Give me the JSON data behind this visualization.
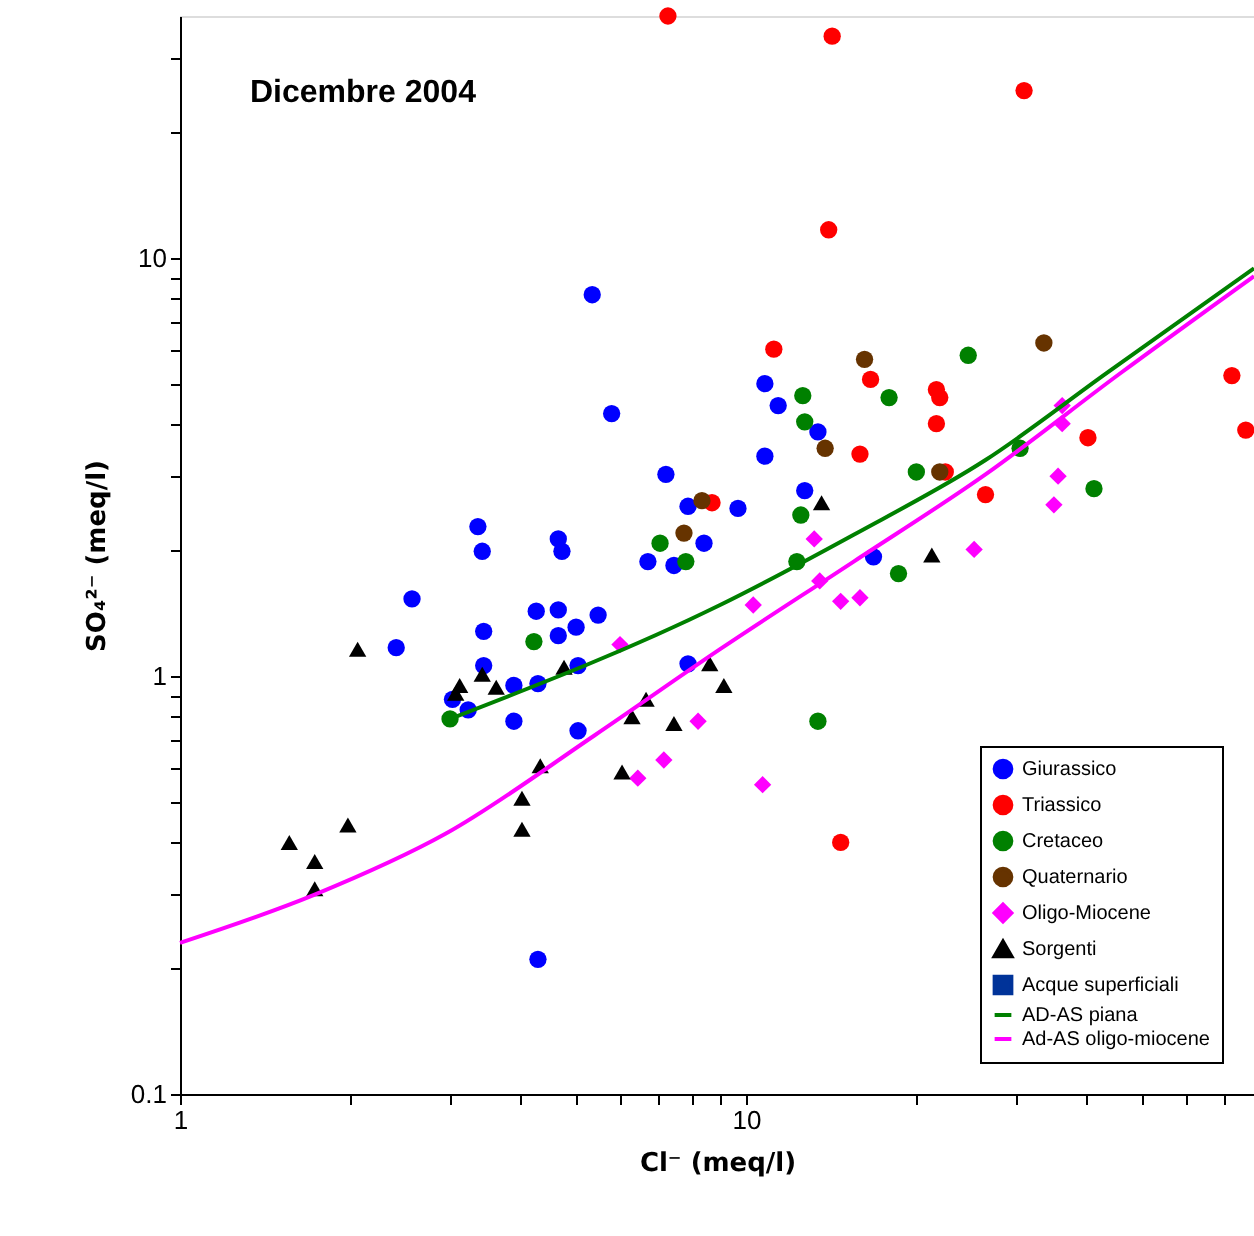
{
  "chart_data": {
    "type": "scatter",
    "title": "Dicembre 2004",
    "xlabel": "Cl⁻ (meq/l)",
    "ylabel": "SO₄²⁻ (meq/l)",
    "log": "xy",
    "grid": false,
    "legend": "bottom right",
    "xlim": [
      1,
      79
    ],
    "xticks": [
      1,
      {
        "value": 2,
        "label": null
      },
      {
        "value": 3,
        "label": null
      },
      {
        "value": 4,
        "label": null
      },
      {
        "value": 5,
        "label": null
      },
      {
        "value": 6,
        "label": null
      },
      {
        "value": 7,
        "label": null
      },
      {
        "value": 8,
        "label": null
      },
      {
        "value": 9,
        "label": null
      },
      10,
      {
        "value": 20,
        "label": null
      },
      {
        "value": 30,
        "label": null
      },
      {
        "value": 40,
        "label": null
      },
      {
        "value": 50,
        "label": null
      },
      {
        "value": 60,
        "label": null
      },
      {
        "value": 70,
        "label": null
      }
    ],
    "ylim": [
      0.1,
      38
    ],
    "yticks": [
      0.1,
      {
        "value": 0.2,
        "label": null
      },
      {
        "value": 0.3,
        "label": null
      },
      {
        "value": 0.4,
        "label": null
      },
      {
        "value": 0.5,
        "label": null
      },
      {
        "value": 0.6,
        "label": null
      },
      {
        "value": 0.7,
        "label": null
      },
      {
        "value": 0.8,
        "label": null
      },
      {
        "value": 0.9,
        "label": null
      },
      1,
      {
        "value": 2,
        "label": null
      },
      {
        "value": 3,
        "label": null
      },
      {
        "value": 4,
        "label": null
      },
      {
        "value": 5,
        "label": null
      },
      {
        "value": 6,
        "label": null
      },
      {
        "value": 7,
        "label": null
      },
      {
        "value": 8,
        "label": null
      },
      {
        "value": 9,
        "label": null
      },
      10,
      {
        "value": 20,
        "label": null
      },
      {
        "value": 30,
        "label": null
      }
    ],
    "series": [
      {
        "name": "Giurassico",
        "marker": "circle",
        "color": "#0000ff",
        "x": [
          5.79,
          7.22,
          7.9,
          8.43,
          6.71,
          7.46,
          3.36,
          3.42,
          4.66,
          4.73,
          2.57,
          2.41,
          3.44,
          4.26,
          4.66,
          5.48,
          4.66,
          5.01,
          3.44,
          5.05,
          3.89,
          4.29,
          3.23,
          3.03,
          3.89,
          5.05,
          7.9,
          5.35,
          10.8,
          11.4,
          13.4,
          10.8,
          12.7,
          9.68,
          16.8,
          4.29
        ],
        "values": [
          4.25,
          3.04,
          2.55,
          2.08,
          1.88,
          1.84,
          2.28,
          1.99,
          2.13,
          1.99,
          1.53,
          1.17,
          1.28,
          1.43,
          1.44,
          1.4,
          1.25,
          1.31,
          1.06,
          1.06,
          0.95,
          0.96,
          0.83,
          0.88,
          0.78,
          0.74,
          1.07,
          8.18,
          5.01,
          4.44,
          3.84,
          3.36,
          2.78,
          2.52,
          1.93,
          0.21
        ]
      },
      {
        "name": "Triassico",
        "marker": "circle",
        "color": "#ff0000",
        "x": [
          7.28,
          14.2,
          31.0,
          14.0,
          11.2,
          72.2,
          16.6,
          21.7,
          22.0,
          21.7,
          15.9,
          40.2,
          76.4,
          26.5,
          22.5,
          14.7,
          8.71
        ],
        "values": [
          38.0,
          34.0,
          25.2,
          11.7,
          6.06,
          5.24,
          5.13,
          4.85,
          4.64,
          4.02,
          3.4,
          3.72,
          3.88,
          2.72,
          3.08,
          0.4,
          2.6
        ]
      },
      {
        "name": "Cretaceo",
        "marker": "circle",
        "color": "#008000",
        "x": [
          24.7,
          7.05,
          7.83,
          4.22,
          3.0,
          12.6,
          17.9,
          12.7,
          20.0,
          30.5,
          41.2,
          12.5,
          12.3,
          18.6,
          13.4
        ],
        "values": [
          5.86,
          2.08,
          1.88,
          1.21,
          0.79,
          4.69,
          4.64,
          4.06,
          3.08,
          3.51,
          2.81,
          2.43,
          1.88,
          1.76,
          0.78
        ]
      },
      {
        "name": "Quaternario",
        "marker": "circle",
        "color": "#663300",
        "x": [
          16.2,
          33.6,
          8.36,
          7.77,
          13.8,
          22.0
        ],
        "values": [
          5.73,
          6.27,
          2.63,
          2.2,
          3.51,
          3.08
        ]
      },
      {
        "name": "Oligo-Miocene",
        "marker": "diamond",
        "color": "#ff00ff",
        "x": [
          5.99,
          8.23,
          36.2,
          36.2,
          35.6,
          35.0,
          25.3,
          13.2,
          13.5,
          14.7,
          15.9,
          10.3,
          6.44,
          7.16,
          10.7
        ],
        "values": [
          1.19,
          0.78,
          4.44,
          4.02,
          3.01,
          2.57,
          2.01,
          2.13,
          1.69,
          1.51,
          1.54,
          1.48,
          0.57,
          0.63,
          0.55
        ]
      },
      {
        "name": "Sorgenti",
        "marker": "triangle",
        "color": "#000000",
        "x": [
          2.06,
          3.12,
          3.42,
          3.62,
          4.77,
          6.66,
          6.29,
          7.46,
          8.63,
          3.07,
          13.6,
          21.3,
          9.14,
          1.56,
          1.73,
          1.73,
          1.98,
          4.02,
          4.02,
          4.33,
          6.04
        ],
        "values": [
          1.16,
          0.95,
          1.01,
          0.94,
          1.05,
          0.88,
          0.8,
          0.77,
          1.07,
          0.91,
          2.6,
          1.95,
          0.95,
          0.4,
          0.36,
          0.31,
          0.44,
          0.51,
          0.43,
          0.61,
          0.59
        ]
      },
      {
        "name": "Acque superficiali",
        "marker": "square",
        "color": "#003399"
      },
      {
        "name": "AD-AS piana",
        "type": "line",
        "marker": "none",
        "line_style": "solid",
        "color": "#008000",
        "x": [
          3.0,
          9.0,
          15.5,
          26.5,
          43.3,
          79
        ],
        "values": [
          0.79,
          1.48,
          2.18,
          3.29,
          5.3,
          9.46
        ]
      },
      {
        "name": "Ad-AS oligo-miocene",
        "type": "line",
        "marker": "none",
        "line_style": "solid",
        "color": "#ff00ff",
        "x": [
          1,
          1.73,
          2.95,
          5.39,
          9.0,
          15.5,
          26.5,
          45.8,
          79
        ],
        "values": [
          0.23,
          0.3,
          0.42,
          0.72,
          1.16,
          1.88,
          3.04,
          5.3,
          9.06
        ]
      }
    ]
  }
}
